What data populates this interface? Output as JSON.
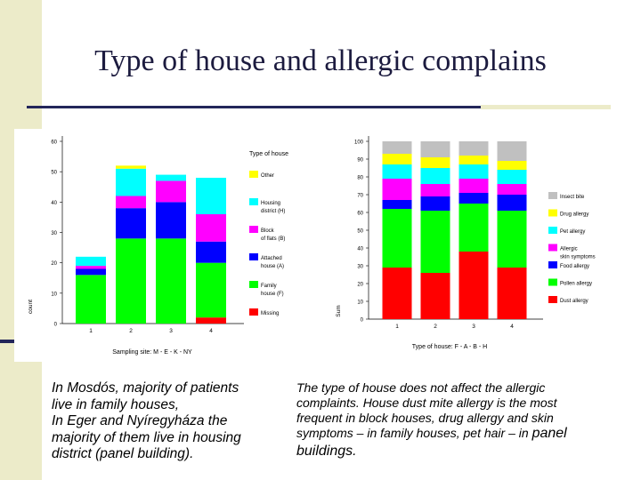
{
  "slide": {
    "title": "Type of house and allergic complains"
  },
  "captions": {
    "left": [
      "In Mosdós, majority of patients",
      "live in family houses,",
      "In Eger and Nyíregyháza the",
      "majority of them live in housing",
      "district (panel building)."
    ],
    "right": {
      "lines": [
        "The type of house does not affect the allergic",
        "complaints. House dust mite allergy is the most",
        "frequent in block houses, drug allergy and skin"
      ],
      "line4": "symptoms – in family houses, pet hair – in",
      "line4_big": "panel",
      "line5": "buildings."
    }
  },
  "chart_data": [
    {
      "type": "bar",
      "stacked": true,
      "title": "Type of house",
      "xlabel": "Sampling site: M - E - K - NY",
      "ylabel": "count",
      "ylim": [
        0,
        60
      ],
      "yticks": [
        "0",
        "10",
        "20",
        "30",
        "40",
        "50",
        "60"
      ],
      "categories": [
        "1",
        "2",
        "3",
        "4"
      ],
      "series": [
        {
          "name": "Missing",
          "legend": [
            "Missing"
          ],
          "color": "#ff0000",
          "values": [
            0,
            0,
            0,
            2
          ]
        },
        {
          "name": "Family house (F)",
          "legend": [
            "Family",
            "house (F)"
          ],
          "color": "#00ff00",
          "values": [
            16,
            28,
            28,
            18
          ]
        },
        {
          "name": "Attached house (A)",
          "legend": [
            "Attached",
            "house (A)"
          ],
          "color": "#0000ff",
          "values": [
            2,
            10,
            12,
            7
          ]
        },
        {
          "name": "Block of flats (B)",
          "legend": [
            "Block",
            "of flats (B)"
          ],
          "color": "#ff00ff",
          "values": [
            1,
            4,
            7,
            9
          ]
        },
        {
          "name": "Housing district (H)",
          "legend": [
            "Housing",
            "district (H)"
          ],
          "color": "#00ffff",
          "values": [
            3,
            9,
            2,
            12
          ]
        },
        {
          "name": "Other",
          "legend": [
            "Other"
          ],
          "color": "#ffff00",
          "values": [
            0,
            1,
            0,
            0
          ]
        }
      ]
    },
    {
      "type": "bar",
      "stacked": true,
      "title": "",
      "xlabel": "Type of house: F - A - B - H",
      "ylabel": "Sum",
      "ylim": [
        0,
        100
      ],
      "yticks": [
        "0",
        "10",
        "20",
        "30",
        "40",
        "50",
        "60",
        "70",
        "80",
        "90",
        "100"
      ],
      "categories": [
        "1",
        "2",
        "3",
        "4"
      ],
      "series": [
        {
          "name": "Dust allergy",
          "legend": [
            "Dust allergy"
          ],
          "color": "#ff0000",
          "values": [
            29,
            26,
            38,
            29
          ]
        },
        {
          "name": "Pollen allergy",
          "legend": [
            "Pollen allergy"
          ],
          "color": "#00ff00",
          "values": [
            33,
            35,
            27,
            32
          ]
        },
        {
          "name": "Food allergy",
          "legend": [
            "Food allergy"
          ],
          "color": "#0000ff",
          "values": [
            5,
            8,
            6,
            9
          ]
        },
        {
          "name": "Allergic skin symptoms",
          "legend": [
            "Allergic",
            "skin symptoms"
          ],
          "color": "#ff00ff",
          "values": [
            12,
            7,
            8,
            6
          ]
        },
        {
          "name": "Pet allergy",
          "legend": [
            "Pet allergy"
          ],
          "color": "#00ffff",
          "values": [
            8,
            9,
            8,
            8
          ]
        },
        {
          "name": "Drug allergy",
          "legend": [
            "Drug allergy"
          ],
          "color": "#ffff00",
          "values": [
            6,
            6,
            5,
            5
          ]
        },
        {
          "name": "Insect bite",
          "legend": [
            "Insect bite"
          ],
          "color": "#c0c0c0",
          "values": [
            7,
            9,
            8,
            11
          ]
        }
      ]
    }
  ]
}
